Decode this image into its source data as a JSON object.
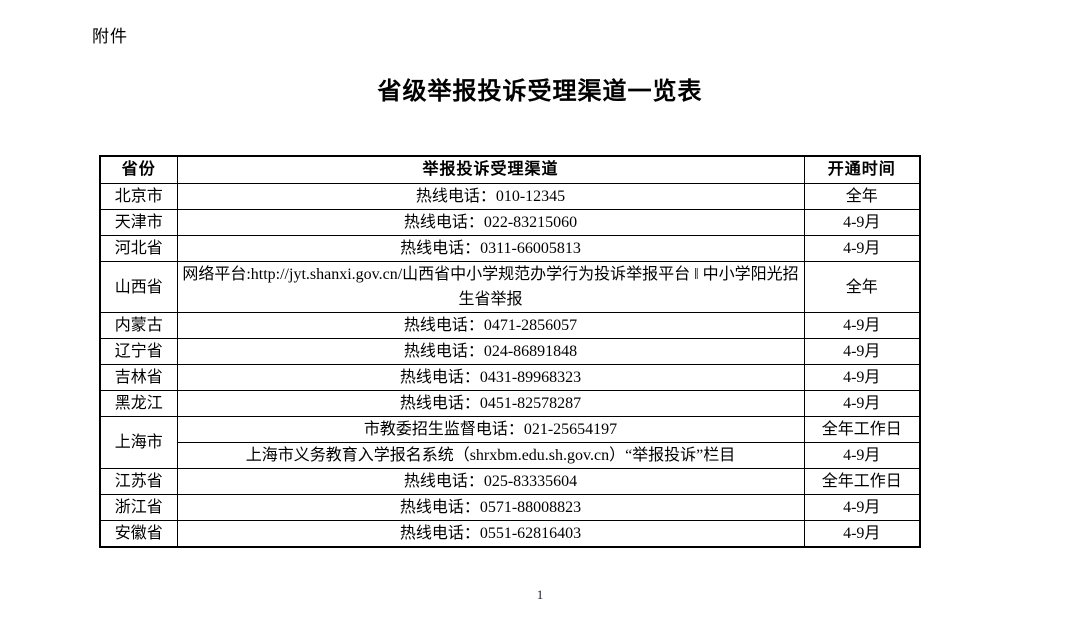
{
  "page": {
    "attachment_label": "附件",
    "title": "省级举报投诉受理渠道一览表",
    "page_number": "1"
  },
  "table": {
    "headers": {
      "province": "省份",
      "channel": "举报投诉受理渠道",
      "time": "开通时间"
    },
    "rows": [
      {
        "province": "北京市",
        "entries": [
          {
            "channel": "热线电话：010-12345",
            "time": "全年"
          }
        ]
      },
      {
        "province": "天津市",
        "entries": [
          {
            "channel": "热线电话：022-83215060",
            "time": "4-9月"
          }
        ]
      },
      {
        "province": "河北省",
        "entries": [
          {
            "channel": "热线电话：0311-66005813",
            "time": "4-9月"
          }
        ]
      },
      {
        "province": "山西省",
        "entries": [
          {
            "channel": "网络平台:http://jyt.shanxi.gov.cn/山西省中小学规范办学行为投诉举报平台 ‖ 中小学阳光招生省举报",
            "time": "全年"
          }
        ]
      },
      {
        "province": "内蒙古",
        "entries": [
          {
            "channel": "热线电话：0471-2856057",
            "time": "4-9月"
          }
        ]
      },
      {
        "province": "辽宁省",
        "entries": [
          {
            "channel": "热线电话：024-86891848",
            "time": "4-9月"
          }
        ]
      },
      {
        "province": "吉林省",
        "entries": [
          {
            "channel": "热线电话：0431-89968323",
            "time": "4-9月"
          }
        ]
      },
      {
        "province": "黑龙江",
        "entries": [
          {
            "channel": "热线电话：0451-82578287",
            "time": "4-9月"
          }
        ]
      },
      {
        "province": "上海市",
        "entries": [
          {
            "channel": "市教委招生监督电话：021-25654197",
            "time": "全年工作日"
          },
          {
            "channel": "上海市义务教育入学报名系统（shrxbm.edu.sh.gov.cn）“举报投诉”栏目",
            "time": "4-9月"
          }
        ]
      },
      {
        "province": "江苏省",
        "entries": [
          {
            "channel": "热线电话：025-83335604",
            "time": "全年工作日"
          }
        ]
      },
      {
        "province": "浙江省",
        "entries": [
          {
            "channel": "热线电话：0571-88008823",
            "time": "4-9月"
          }
        ]
      },
      {
        "province": "安徽省",
        "entries": [
          {
            "channel": "热线电话：0551-62816403",
            "time": "4-9月"
          }
        ]
      }
    ]
  }
}
